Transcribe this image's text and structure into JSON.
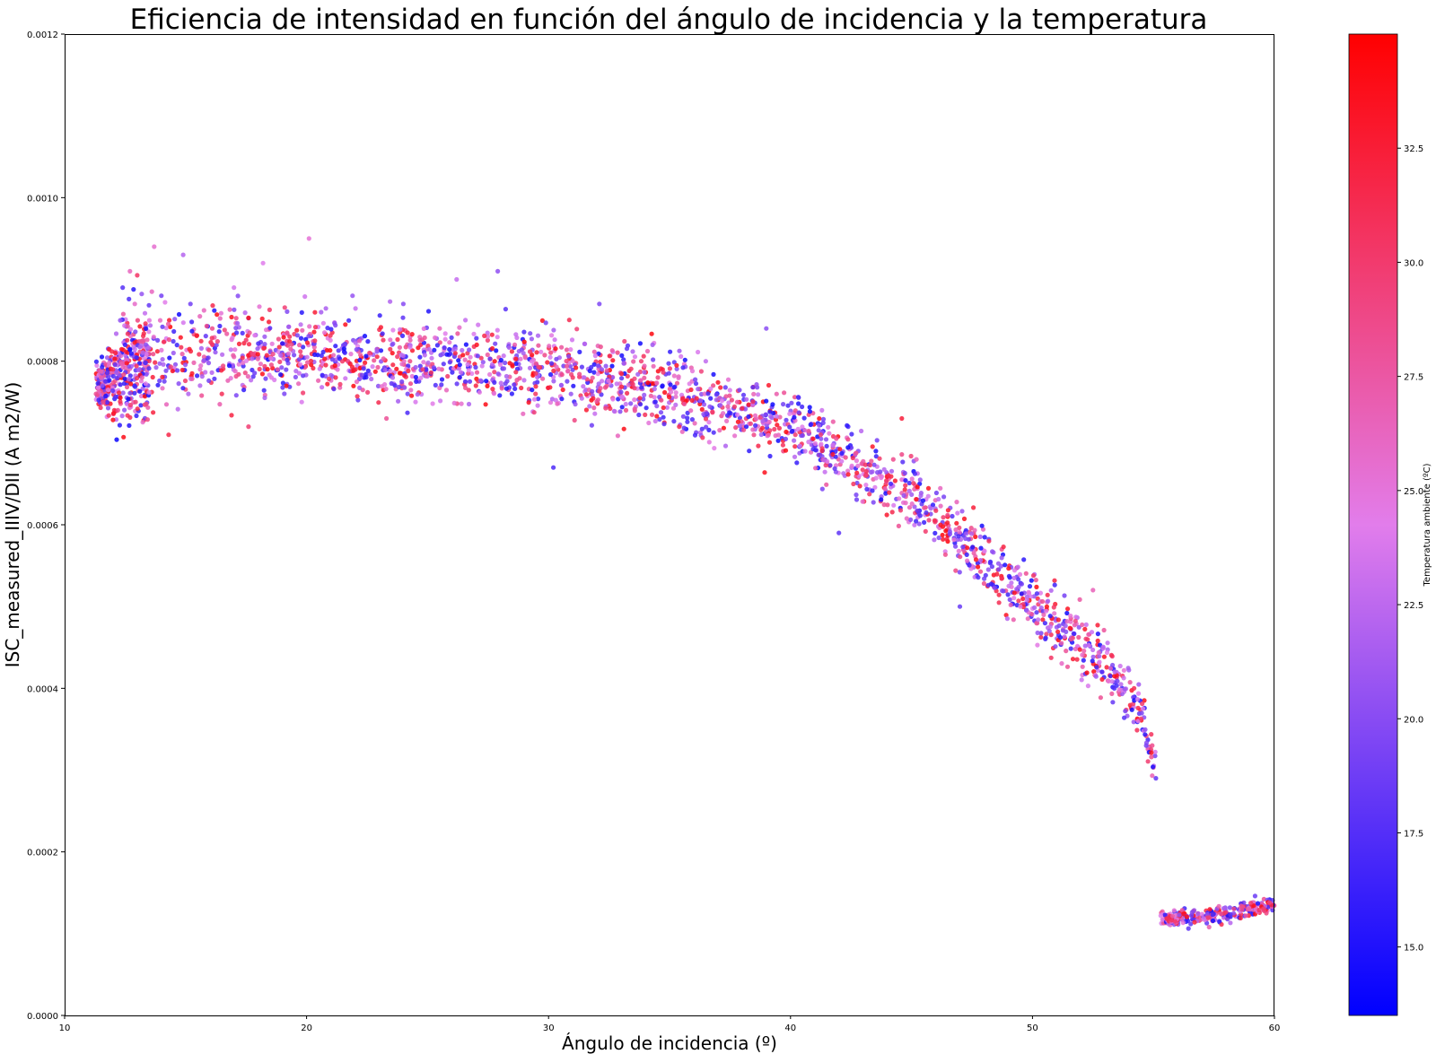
{
  "chart_data": {
    "type": "scatter",
    "title": "Eficiencia de intensidad en función del ángulo de incidencia y la temperatura",
    "xlabel": "Ángulo de incidencia (º)",
    "ylabel": "ISC_measured_IIIV/DII (A m2/W)",
    "xlim": [
      10,
      60
    ],
    "ylim": [
      0,
      0.0012
    ],
    "xticks": [
      "10",
      "20",
      "30",
      "40",
      "50",
      "60"
    ],
    "yticks": [
      "0.0000",
      "0.0002",
      "0.0004",
      "0.0006",
      "0.0008",
      "0.0010",
      "0.0012"
    ],
    "grid": false,
    "colorbar": {
      "label": "Temperatura ambiente (ºC)",
      "range": [
        13.5,
        35.0
      ],
      "ticks": [
        "15.0",
        "17.5",
        "20.0",
        "22.5",
        "25.0",
        "27.5",
        "30.0",
        "32.5"
      ],
      "colormap": [
        "#0000ff",
        "#e27deb",
        "#ff0000"
      ]
    },
    "trend": [
      {
        "x": 11.5,
        "y": 0.00077,
        "spread": 3e-05
      },
      {
        "x": 12.0,
        "y": 0.00078,
        "spread": 6e-05
      },
      {
        "x": 13.0,
        "y": 0.0008,
        "spread": 7e-05
      },
      {
        "x": 15.0,
        "y": 0.00081,
        "spread": 6e-05
      },
      {
        "x": 20.0,
        "y": 0.00081,
        "spread": 5e-05
      },
      {
        "x": 25.0,
        "y": 0.0008,
        "spread": 5e-05
      },
      {
        "x": 30.0,
        "y": 0.00079,
        "spread": 5e-05
      },
      {
        "x": 35.0,
        "y": 0.00076,
        "spread": 5e-05
      },
      {
        "x": 40.0,
        "y": 0.00072,
        "spread": 4e-05
      },
      {
        "x": 45.0,
        "y": 0.00064,
        "spread": 4e-05
      },
      {
        "x": 50.0,
        "y": 0.0005,
        "spread": 4e-05
      },
      {
        "x": 53.0,
        "y": 0.00043,
        "spread": 4e-05
      },
      {
        "x": 54.5,
        "y": 0.00037,
        "spread": 3e-05
      },
      {
        "x": 55.0,
        "y": 0.00031,
        "spread": 2e-05
      }
    ],
    "tail": [
      {
        "x": 55.3,
        "y": 0.000118,
        "spread": 1e-05
      },
      {
        "x": 57.5,
        "y": 0.000122,
        "spread": 1e-05
      },
      {
        "x": 60.0,
        "y": 0.000135,
        "spread": 1e-05
      }
    ],
    "points": [
      [
        11.3,
        0.00076,
        28.4
      ],
      [
        11.5,
        0.00078,
        26.9
      ],
      [
        11.6,
        0.00075,
        29.1
      ],
      [
        11.8,
        0.000765,
        24.7
      ],
      [
        12.0,
        0.00079,
        31.2
      ],
      [
        12.1,
        0.00081,
        32.5
      ],
      [
        12.2,
        0.00074,
        28.8
      ],
      [
        12.3,
        0.00085,
        20.4
      ],
      [
        12.4,
        0.00089,
        17.6
      ],
      [
        12.5,
        0.00082,
        16.1
      ],
      [
        12.7,
        0.00091,
        26.3
      ],
      [
        12.9,
        0.00087,
        25.8
      ],
      [
        13.0,
        0.000905,
        30.4
      ],
      [
        13.2,
        0.00078,
        27.3
      ],
      [
        13.5,
        0.00085,
        24.9
      ],
      [
        13.7,
        0.00094,
        25.5
      ],
      [
        14.0,
        0.00088,
        19.1
      ],
      [
        14.3,
        0.00071,
        31.7
      ],
      [
        14.5,
        0.00081,
        20.8
      ],
      [
        14.9,
        0.00093,
        22.1
      ],
      [
        15.2,
        0.00087,
        18.9
      ],
      [
        15.6,
        0.00079,
        26.0
      ],
      [
        16.1,
        0.00084,
        28.7
      ],
      [
        16.5,
        0.00076,
        31.0
      ],
      [
        17.0,
        0.00089,
        23.5
      ],
      [
        17.6,
        0.00072,
        29.8
      ],
      [
        18.2,
        0.00092,
        24.1
      ],
      [
        18.8,
        0.00079,
        27.6
      ],
      [
        19.3,
        0.00083,
        30.9
      ],
      [
        19.8,
        0.00075,
        23.8
      ],
      [
        20.1,
        0.00095,
        25.2
      ],
      [
        20.6,
        0.00086,
        21.4
      ],
      [
        21.2,
        0.00078,
        31.5
      ],
      [
        21.9,
        0.00088,
        20.7
      ],
      [
        22.6,
        0.00081,
        29.4
      ],
      [
        23.3,
        0.00073,
        28.1
      ],
      [
        24.0,
        0.00087,
        19.9
      ],
      [
        24.8,
        0.00079,
        30.2
      ],
      [
        25.5,
        0.00084,
        26.5
      ],
      [
        26.2,
        0.0009,
        22.8
      ],
      [
        27.0,
        0.00077,
        31.9
      ],
      [
        27.9,
        0.00091,
        20.3
      ],
      [
        28.6,
        0.00082,
        27.2
      ],
      [
        29.3,
        0.0008,
        24.4
      ],
      [
        30.2,
        0.00067,
        17.2
      ],
      [
        31.0,
        0.00078,
        30.6
      ],
      [
        32.1,
        0.00087,
        19.5
      ],
      [
        33.2,
        0.00074,
        28.9
      ],
      [
        34.3,
        0.00082,
        21.1
      ],
      [
        35.4,
        0.00072,
        31.4
      ],
      [
        36.5,
        0.0008,
        22.6
      ],
      [
        37.8,
        0.00075,
        27.8
      ],
      [
        39.0,
        0.00084,
        20.1
      ],
      [
        40.2,
        0.00071,
        30.1
      ],
      [
        41.3,
        0.00074,
        23.2
      ],
      [
        42.0,
        0.00059,
        17.9
      ],
      [
        43.1,
        0.00066,
        29.5
      ],
      [
        44.6,
        0.00073,
        32.3
      ],
      [
        45.8,
        0.00062,
        21.8
      ],
      [
        47.0,
        0.0005,
        18.4
      ],
      [
        48.2,
        0.00058,
        30.8
      ],
      [
        49.5,
        0.0005,
        24.6
      ],
      [
        50.7,
        0.00047,
        20.9
      ],
      [
        51.6,
        0.00046,
        28.3
      ],
      [
        52.5,
        0.00052,
        26.6
      ],
      [
        53.4,
        0.00042,
        22.3
      ],
      [
        54.2,
        0.0004,
        31.1
      ],
      [
        54.7,
        0.00033,
        19.3
      ],
      [
        55.1,
        0.00029,
        18.1
      ],
      [
        55.3,
        0.000122,
        24.2
      ],
      [
        55.9,
        0.000115,
        30.0
      ],
      [
        56.6,
        0.000126,
        19.7
      ],
      [
        57.3,
        0.000108,
        27.1
      ],
      [
        57.9,
        0.000131,
        21.6
      ],
      [
        58.6,
        0.000119,
        32.1
      ],
      [
        59.2,
        0.000146,
        18.6
      ],
      [
        59.8,
        0.000138,
        29.2
      ]
    ]
  }
}
